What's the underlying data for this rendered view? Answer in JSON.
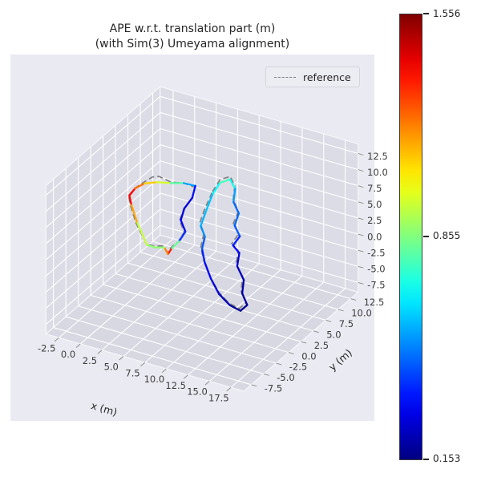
{
  "title": {
    "line1": "APE w.r.t. translation part (m)",
    "line2": "(with Sim(3) Umeyama alignment)"
  },
  "legend": {
    "label": "reference",
    "line_style": "dashed",
    "line_color": "#7f7f7f"
  },
  "colorbar": {
    "colormap": "jet",
    "min": 0.153,
    "max": 1.556,
    "max_label": "1.556",
    "mid_label": "0.855",
    "min_label": "0.153"
  },
  "chart_data": {
    "type": "line",
    "subtype": "trajectory-3d",
    "title": "APE w.r.t. translation part (m) (with Sim(3) Umeyama alignment)",
    "view": {
      "azim": -60,
      "elev": 30
    },
    "grid": true,
    "axes": {
      "x": {
        "label": "x (m)",
        "ticks": [
          -2.5,
          0.0,
          2.5,
          5.0,
          7.5,
          10.0,
          12.5,
          15.0,
          17.5
        ],
        "range": [
          -4,
          19
        ]
      },
      "y": {
        "label": "y (m)",
        "ticks": [
          -7.5,
          -5.0,
          -2.5,
          0.0,
          2.5,
          5.0,
          7.5,
          10.0,
          12.5
        ],
        "range": [
          -9,
          14
        ]
      },
      "z": {
        "label": "",
        "ticks": [
          -7.5,
          -5.0,
          -2.5,
          0.0,
          2.5,
          5.0,
          7.5,
          10.0,
          12.5
        ],
        "range": [
          -9,
          14
        ]
      }
    },
    "series": [
      {
        "name": "reference",
        "style": "dashed",
        "color": "#7f7f7f",
        "segments": [
          [
            [
              0.3,
              0.2,
              8.0
            ],
            [
              0.9,
              0.5,
              9.2
            ],
            [
              1.8,
              0.8,
              10.3
            ],
            [
              2.6,
              1.0,
              11.2
            ],
            [
              3.3,
              1.1,
              11.5
            ],
            [
              4.5,
              1.3,
              11.0
            ],
            [
              6.0,
              1.5,
              11.2
            ],
            [
              7.2,
              1.6,
              11.0
            ],
            [
              6.9,
              1.5,
              9.2
            ],
            [
              6.1,
              1.3,
              7.5
            ],
            [
              5.7,
              1.1,
              5.6
            ],
            [
              6.3,
              1.0,
              4.1
            ],
            [
              5.7,
              0.9,
              2.5
            ],
            [
              4.9,
              0.7,
              1.3
            ],
            [
              4.5,
              0.6,
              0.6
            ],
            [
              4.2,
              0.5,
              1.5
            ],
            [
              3.2,
              0.4,
              1.1
            ],
            [
              2.3,
              0.3,
              1.2
            ],
            [
              1.2,
              0.1,
              4.2
            ],
            [
              0.6,
              0.0,
              6.8
            ],
            [
              0.3,
              0.2,
              8.0
            ]
          ],
          [
            [
              6.0,
              7.2,
              6.1
            ],
            [
              6.3,
              8.2,
              7.4
            ],
            [
              6.9,
              9.2,
              7.5
            ],
            [
              7.5,
              9.1,
              6.3
            ],
            [
              7.6,
              8.6,
              4.6
            ],
            [
              8.5,
              8.1,
              3.4
            ],
            [
              8.2,
              7.6,
              1.8
            ],
            [
              9.1,
              7.1,
              0.8
            ],
            [
              8.6,
              6.6,
              -0.5
            ],
            [
              9.5,
              6.3,
              -1.1
            ],
            [
              9.6,
              5.7,
              -2.7
            ],
            [
              10.6,
              5.3,
              -4.2
            ],
            [
              10.7,
              4.8,
              -5.9
            ],
            [
              11.4,
              4.6,
              -7.3
            ],
            [
              11.2,
              3.6,
              -7.6
            ],
            [
              9.8,
              3.9,
              -7.5
            ],
            [
              8.4,
              4.3,
              -6.6
            ],
            [
              7.0,
              4.9,
              -5.1
            ],
            [
              6.0,
              5.4,
              -3.3
            ],
            [
              5.4,
              5.9,
              -1.8
            ],
            [
              5.5,
              6.3,
              -0.1
            ],
            [
              4.9,
              6.5,
              1.2
            ],
            [
              5.3,
              6.8,
              3.3
            ],
            [
              6.0,
              7.2,
              6.1
            ]
          ]
        ]
      },
      {
        "name": "estimate (colored by APE)",
        "style": "solid",
        "color_by": "ape",
        "segments": [
          [
            [
              0.5,
              0.0,
              8.2,
              1.45
            ],
            [
              1.0,
              0.3,
              9.3,
              1.3
            ],
            [
              1.9,
              0.6,
              10.2,
              1.15
            ],
            [
              3.2,
              0.9,
              10.7,
              1.05
            ],
            [
              4.6,
              1.2,
              10.9,
              0.9
            ],
            [
              6.0,
              1.4,
              11.3,
              0.7
            ],
            [
              7.3,
              1.5,
              11.3,
              0.4
            ],
            [
              7.0,
              1.4,
              9.4,
              0.3
            ],
            [
              6.2,
              1.2,
              7.6,
              0.28
            ],
            [
              5.9,
              1.0,
              5.8,
              0.3
            ],
            [
              6.5,
              0.9,
              4.3,
              0.33
            ],
            [
              5.8,
              0.8,
              2.6,
              0.45
            ],
            [
              5.0,
              0.6,
              1.2,
              1.2
            ],
            [
              4.7,
              0.5,
              0.4,
              1.5
            ],
            [
              4.3,
              0.45,
              1.3,
              0.9
            ],
            [
              3.3,
              0.35,
              1.0,
              0.85
            ],
            [
              2.4,
              0.25,
              1.1,
              0.9
            ],
            [
              1.3,
              0.1,
              4.4,
              1.0
            ],
            [
              0.7,
              0.0,
              7.0,
              1.3
            ],
            [
              0.5,
              0.0,
              8.2,
              1.45
            ]
          ],
          [
            [
              6.1,
              7.0,
              5.8,
              0.6
            ],
            [
              6.4,
              8.0,
              7.1,
              0.75
            ],
            [
              7.0,
              9.0,
              7.2,
              0.8
            ],
            [
              7.6,
              9.0,
              6.0,
              0.6
            ],
            [
              7.7,
              8.5,
              4.3,
              0.5
            ],
            [
              8.6,
              8.0,
              3.2,
              0.45
            ],
            [
              8.4,
              7.5,
              1.6,
              0.5
            ],
            [
              9.3,
              7.0,
              0.6,
              0.4
            ],
            [
              8.8,
              6.5,
              -0.7,
              0.35
            ],
            [
              9.7,
              6.2,
              -1.3,
              0.3
            ],
            [
              9.8,
              5.6,
              -2.9,
              0.25
            ],
            [
              10.8,
              5.2,
              -4.4,
              0.22
            ],
            [
              10.9,
              4.7,
              -6.1,
              0.2
            ],
            [
              11.6,
              4.5,
              -7.5,
              0.18
            ],
            [
              11.4,
              3.5,
              -7.8,
              0.17
            ],
            [
              10.0,
              3.8,
              -7.7,
              0.2
            ],
            [
              8.5,
              4.2,
              -6.8,
              0.25
            ],
            [
              7.2,
              4.8,
              -5.3,
              0.3
            ],
            [
              6.2,
              5.3,
              -3.5,
              0.35
            ],
            [
              5.6,
              5.8,
              -2.0,
              0.4
            ],
            [
              5.7,
              6.2,
              -0.3,
              0.5
            ],
            [
              5.1,
              6.4,
              1.0,
              0.55
            ],
            [
              5.5,
              6.7,
              3.1,
              0.6
            ],
            [
              6.1,
              7.0,
              5.8,
              0.6
            ]
          ]
        ]
      }
    ]
  }
}
